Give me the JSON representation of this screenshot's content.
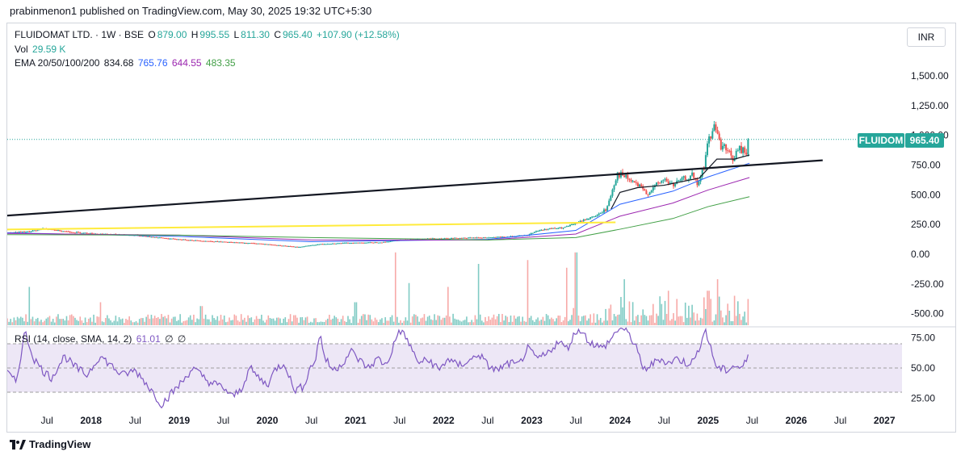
{
  "publish_line": "prabinmenon1 published on TradingView.com, May 30, 2025 19:32 UTC+5:30",
  "legend": {
    "symbol": "FLUIDOMAT LTD. · 1W · BSE",
    "o_label": "O",
    "o_value": "879.00",
    "h_label": "H",
    "h_value": "995.55",
    "l_label": "L",
    "l_value": "811.30",
    "c_label": "C",
    "c_value": "965.40",
    "change": "+107.90 (+12.58%)",
    "vol_label": "Vol",
    "vol_value": "29.59 K",
    "ema_label": "EMA 20/50/100/200",
    "ema20": "834.68",
    "ema50": "765.76",
    "ema100": "644.55",
    "ema200": "483.35",
    "rsi_label": "RSI (14, close, SMA, 14, 2)",
    "rsi_value": "61.01",
    "rsi_na1": "∅",
    "rsi_na2": "∅"
  },
  "currency_button": "INR",
  "price_tag": {
    "ticker": "FLUIDOM",
    "value": "965.40"
  },
  "footer_brand": "TradingView",
  "colors": {
    "up": "#26a69a",
    "down": "#ef5350",
    "ema20": "#131722",
    "ema50": "#2962ff",
    "ema100": "#9c27b0",
    "ema200": "#43a047",
    "trend_black": "#131722",
    "trend_yellow": "#ffeb3b",
    "rsi_line": "#7e57c2",
    "rsi_band": "#ede7f6"
  },
  "chart_data": [
    {
      "type": "candlestick",
      "title": "FLUIDOMAT LTD. · 1W · BSE",
      "y_ticks": [
        "1,500.00",
        "1,250.00",
        "1,000.00",
        "750.00",
        "500.00",
        "250.00",
        "0.00",
        "-250.00",
        "-500.00"
      ],
      "y_tick_values": [
        1500,
        1250,
        1000,
        750,
        500,
        250,
        0,
        -250,
        -500
      ],
      "ylim": [
        -560,
        1700
      ],
      "x_ticks": [
        "Jul",
        "2018",
        "Jul",
        "2019",
        "Jul",
        "2020",
        "Jul",
        "2021",
        "Jul",
        "2022",
        "Jul",
        "2023",
        "Jul",
        "2024",
        "Jul",
        "2025",
        "Jul",
        "2026",
        "Jul",
        "2027"
      ],
      "x_tick_dates": [
        2017.5,
        2018.0,
        2018.5,
        2019.0,
        2019.5,
        2020.0,
        2020.5,
        2021.0,
        2021.5,
        2022.0,
        2022.5,
        2023.0,
        2023.5,
        2024.0,
        2024.5,
        2025.0,
        2025.5,
        2026.0,
        2026.5,
        2027.0
      ],
      "xlim": [
        2017.05,
        2027.2
      ],
      "x_tick_labels_bold": [
        false,
        true,
        false,
        true,
        false,
        true,
        false,
        true,
        false,
        true,
        false,
        true,
        false,
        true,
        false,
        true,
        false,
        true,
        false,
        true
      ],
      "last_close": 965.4,
      "close_path": [
        [
          2017.05,
          180
        ],
        [
          2017.3,
          190
        ],
        [
          2017.45,
          215
        ],
        [
          2017.8,
          185
        ],
        [
          2018.1,
          170
        ],
        [
          2018.5,
          160
        ],
        [
          2018.9,
          130
        ],
        [
          2019.2,
          115
        ],
        [
          2019.6,
          100
        ],
        [
          2019.9,
          90
        ],
        [
          2020.2,
          70
        ],
        [
          2020.35,
          60
        ],
        [
          2020.6,
          85
        ],
        [
          2020.9,
          95
        ],
        [
          2021.3,
          100
        ],
        [
          2021.5,
          120
        ],
        [
          2021.8,
          130
        ],
        [
          2022.1,
          135
        ],
        [
          2022.5,
          140
        ],
        [
          2022.8,
          150
        ],
        [
          2022.95,
          160
        ],
        [
          2023.05,
          195
        ],
        [
          2023.2,
          215
        ],
        [
          2023.35,
          220
        ],
        [
          2023.5,
          260
        ],
        [
          2023.6,
          290
        ],
        [
          2023.75,
          330
        ],
        [
          2023.85,
          380
        ],
        [
          2023.92,
          560
        ],
        [
          2023.97,
          680
        ],
        [
          2024.05,
          650
        ],
        [
          2024.2,
          580
        ],
        [
          2024.3,
          510
        ],
        [
          2024.5,
          630
        ],
        [
          2024.6,
          580
        ],
        [
          2024.75,
          640
        ],
        [
          2024.82,
          660
        ],
        [
          2024.88,
          580
        ],
        [
          2024.95,
          720
        ],
        [
          2025.0,
          960
        ],
        [
          2025.05,
          1010
        ],
        [
          2025.08,
          1130
        ],
        [
          2025.12,
          940
        ],
        [
          2025.2,
          880
        ],
        [
          2025.28,
          800
        ],
        [
          2025.35,
          880
        ],
        [
          2025.43,
          860
        ],
        [
          2025.47,
          965
        ]
      ],
      "ema_paths": {
        "ema20": [
          [
            2023.9,
            380
          ],
          [
            2024.0,
            520
          ],
          [
            2024.2,
            560
          ],
          [
            2024.5,
            580
          ],
          [
            2024.9,
            640
          ],
          [
            2025.1,
            800
          ],
          [
            2025.3,
            800
          ],
          [
            2025.47,
            834.68
          ]
        ],
        "ema50": [
          [
            2017.05,
            180
          ],
          [
            2019.0,
            150
          ],
          [
            2020.5,
            105
          ],
          [
            2022.5,
            125
          ],
          [
            2023.5,
            200
          ],
          [
            2024.0,
            420
          ],
          [
            2024.6,
            530
          ],
          [
            2025.0,
            650
          ],
          [
            2025.47,
            765.76
          ]
        ],
        "ema100": [
          [
            2017.05,
            175
          ],
          [
            2019.0,
            160
          ],
          [
            2020.5,
            120
          ],
          [
            2022.5,
            120
          ],
          [
            2023.5,
            170
          ],
          [
            2024.0,
            320
          ],
          [
            2024.6,
            430
          ],
          [
            2025.0,
            540
          ],
          [
            2025.47,
            644.55
          ]
        ],
        "ema200": [
          [
            2017.05,
            165
          ],
          [
            2019.0,
            160
          ],
          [
            2020.5,
            140
          ],
          [
            2022.5,
            120
          ],
          [
            2023.5,
            140
          ],
          [
            2024.0,
            210
          ],
          [
            2024.6,
            300
          ],
          [
            2025.0,
            400
          ],
          [
            2025.47,
            483.35
          ]
        ]
      },
      "trendlines": [
        {
          "name": "black",
          "points": [
            [
              2017.05,
              325
            ],
            [
              2026.3,
              790
            ]
          ]
        },
        {
          "name": "yellow",
          "points": [
            [
              2017.05,
              208
            ],
            [
              2023.95,
              268
            ]
          ]
        }
      ]
    },
    {
      "type": "bar",
      "title": "Vol",
      "last_value": "29.59 K",
      "spikes": [
        [
          2017.3,
          0.5
        ],
        [
          2018.1,
          0.3
        ],
        [
          2019.25,
          0.25
        ],
        [
          2021.0,
          0.3
        ],
        [
          2021.45,
          0.95
        ],
        [
          2021.6,
          0.55
        ],
        [
          2022.05,
          0.5
        ],
        [
          2022.4,
          0.8
        ],
        [
          2022.95,
          0.85
        ],
        [
          2023.4,
          0.75
        ],
        [
          2023.5,
          0.95
        ],
        [
          2024.05,
          0.6
        ],
        [
          2024.55,
          0.45
        ],
        [
          2025.0,
          0.45
        ],
        [
          2025.1,
          0.6
        ],
        [
          2025.45,
          0.2
        ]
      ]
    },
    {
      "type": "line",
      "title": "RSI (14, close, SMA, 14, 2)",
      "last_value": 61.01,
      "y_ticks": [
        "75.00",
        "50.00",
        "25.00"
      ],
      "y_tick_values": [
        75,
        50,
        25
      ],
      "band": [
        30,
        70
      ],
      "ylim": [
        16,
        84
      ],
      "points": [
        [
          2017.05,
          46
        ],
        [
          2017.15,
          38
        ],
        [
          2017.25,
          80
        ],
        [
          2017.35,
          58
        ],
        [
          2017.45,
          48
        ],
        [
          2017.55,
          42
        ],
        [
          2017.7,
          60
        ],
        [
          2017.8,
          52
        ],
        [
          2017.95,
          44
        ],
        [
          2018.1,
          60
        ],
        [
          2018.2,
          54
        ],
        [
          2018.35,
          44
        ],
        [
          2018.5,
          48
        ],
        [
          2018.6,
          40
        ],
        [
          2018.7,
          30
        ],
        [
          2018.8,
          20
        ],
        [
          2018.9,
          28
        ],
        [
          2019.05,
          40
        ],
        [
          2019.15,
          50
        ],
        [
          2019.25,
          44
        ],
        [
          2019.35,
          38
        ],
        [
          2019.5,
          34
        ],
        [
          2019.6,
          26
        ],
        [
          2019.7,
          32
        ],
        [
          2019.8,
          50
        ],
        [
          2019.9,
          42
        ],
        [
          2020.0,
          36
        ],
        [
          2020.1,
          50
        ],
        [
          2020.2,
          54
        ],
        [
          2020.3,
          32
        ],
        [
          2020.4,
          34
        ],
        [
          2020.5,
          52
        ],
        [
          2020.55,
          58
        ],
        [
          2020.6,
          80
        ],
        [
          2020.65,
          58
        ],
        [
          2020.75,
          48
        ],
        [
          2020.85,
          54
        ],
        [
          2020.95,
          64
        ],
        [
          2021.05,
          56
        ],
        [
          2021.15,
          50
        ],
        [
          2021.25,
          58
        ],
        [
          2021.35,
          52
        ],
        [
          2021.45,
          72
        ],
        [
          2021.5,
          82
        ],
        [
          2021.6,
          72
        ],
        [
          2021.7,
          55
        ],
        [
          2021.85,
          56
        ],
        [
          2021.95,
          48
        ],
        [
          2022.05,
          58
        ],
        [
          2022.15,
          52
        ],
        [
          2022.3,
          56
        ],
        [
          2022.4,
          62
        ],
        [
          2022.5,
          52
        ],
        [
          2022.6,
          48
        ],
        [
          2022.75,
          54
        ],
        [
          2022.85,
          52
        ],
        [
          2022.95,
          66
        ],
        [
          2023.05,
          58
        ],
        [
          2023.15,
          60
        ],
        [
          2023.2,
          64
        ],
        [
          2023.3,
          72
        ],
        [
          2023.4,
          66
        ],
        [
          2023.5,
          80
        ],
        [
          2023.55,
          82
        ],
        [
          2023.65,
          72
        ],
        [
          2023.8,
          66
        ],
        [
          2023.9,
          74
        ],
        [
          2024.0,
          84
        ],
        [
          2024.1,
          78
        ],
        [
          2024.2,
          66
        ],
        [
          2024.25,
          48
        ],
        [
          2024.35,
          52
        ],
        [
          2024.45,
          58
        ],
        [
          2024.55,
          54
        ],
        [
          2024.65,
          58
        ],
        [
          2024.75,
          54
        ],
        [
          2024.85,
          56
        ],
        [
          2024.92,
          72
        ],
        [
          2024.97,
          82
        ],
        [
          2025.02,
          68
        ],
        [
          2025.1,
          50
        ],
        [
          2025.2,
          48
        ],
        [
          2025.3,
          52
        ],
        [
          2025.38,
          50
        ],
        [
          2025.43,
          55
        ],
        [
          2025.47,
          61
        ]
      ]
    }
  ]
}
